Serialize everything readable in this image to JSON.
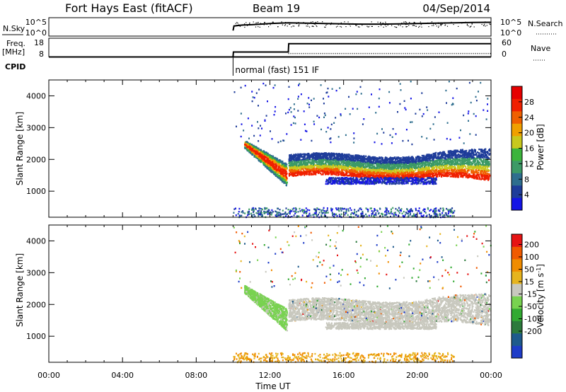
{
  "header": {
    "station": "Fort Hays East (fitACF)",
    "beam": "Beam 19",
    "date": "04/Sep/2014"
  },
  "colors": {
    "power_scale": [
      "#1414e6",
      "#1e3c9a",
      "#2e6e8e",
      "#3c9a66",
      "#3cb43c",
      "#c8c81e",
      "#f0a000",
      "#f06000",
      "#f02000",
      "#e60000"
    ],
    "velocity_scale": [
      "#1e3cc8",
      "#1e5a8c",
      "#2c7a3c",
      "#32aa32",
      "#78d250",
      "#c8c8be",
      "#e6b41e",
      "#f08c00",
      "#f05a00",
      "#e61414"
    ],
    "line": "#000000"
  },
  "chart_data": [
    {
      "type": "line",
      "name": "status-nsky-nsearch",
      "left_label": "N.Sky",
      "right_label": "N.Search",
      "left_ticks": [
        "10^5",
        "10^0"
      ],
      "right_ticks": [
        "10^5",
        "10^0"
      ],
      "series": [
        {
          "legend": "N.Search",
          "x": [
            10.0,
            10.05,
            10.5,
            11.0,
            11.5,
            12.0,
            12.5,
            13.0,
            14.0,
            15.0,
            16.0,
            17.0,
            18.0,
            19.0,
            20.0,
            21.0,
            22.0,
            23.0,
            24.0
          ],
          "y": [
            0.3,
            0.55,
            0.6,
            0.62,
            0.65,
            0.68,
            0.7,
            0.72,
            0.7,
            0.68,
            0.66,
            0.65,
            0.65,
            0.66,
            0.68,
            0.7,
            0.72,
            0.74,
            0.75
          ]
        }
      ]
    },
    {
      "type": "line",
      "name": "status-freq-nave",
      "left_label": "Freq.",
      "left_unit": "[MHz]",
      "right_label": "Nave",
      "left_ticks": [
        "18",
        "8"
      ],
      "right_ticks": [
        "60",
        "0"
      ],
      "series": [
        {
          "legend": "Freq",
          "x": [
            10.0,
            10.02,
            13.0,
            13.02,
            24.0
          ],
          "y": [
            8.0,
            10.5,
            10.5,
            15.0,
            15.0
          ]
        },
        {
          "legend": "Nave",
          "x": [
            10.0,
            24.0
          ],
          "y": [
            10,
            10
          ]
        }
      ]
    },
    {
      "type": "table",
      "name": "cpid",
      "label": "CPID",
      "entries": [
        {
          "start_hour": 10.0,
          "text": "normal (fast) 151 IF"
        }
      ]
    },
    {
      "type": "heatmap",
      "name": "power-panel",
      "ylabel": "Slant Range [km]",
      "yticks": [
        1000,
        2000,
        3000,
        4000
      ],
      "ylim": [
        180,
        4500
      ],
      "xlim": [
        0,
        24
      ],
      "colorbar": {
        "label": "Power [dB]",
        "ticks": [
          4,
          8,
          12,
          16,
          20,
          24,
          28
        ],
        "range": [
          0,
          32
        ]
      }
    },
    {
      "type": "heatmap",
      "name": "velocity-panel",
      "ylabel": "Slant Range [km]",
      "yticks": [
        1000,
        2000,
        3000,
        4000
      ],
      "ylim": [
        180,
        4500
      ],
      "xlim": [
        0,
        24
      ],
      "colorbar": {
        "label": "Velocity [m s",
        "label_sup": "-1",
        "label_tail": "]",
        "ticks": [
          "200",
          "100",
          "50",
          "15",
          "-15",
          "-50",
          "-100",
          "-200"
        ]
      }
    },
    {
      "type": "axis",
      "name": "time-axis",
      "xlabel": "Time UT",
      "xticks": [
        "00:00",
        "04:00",
        "08:00",
        "12:00",
        "16:00",
        "20:00",
        "00:00"
      ],
      "xlim": [
        0,
        24
      ]
    }
  ]
}
